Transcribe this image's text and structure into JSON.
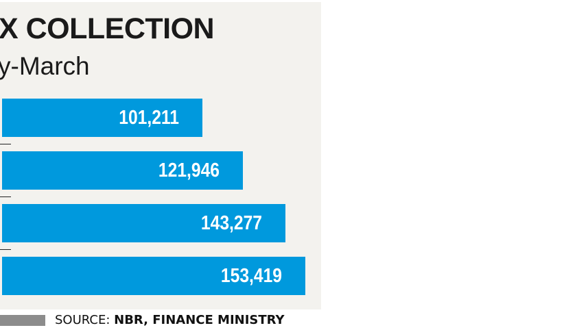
{
  "chart_data": {
    "type": "bar",
    "orientation": "horizontal",
    "title": "X COLLECTION",
    "subtitle": "y-March",
    "values": [
      101211,
      121946,
      143277,
      153419
    ],
    "value_labels": [
      "101,211",
      "121,946",
      "143,277",
      "153,419"
    ],
    "bar_color": "#0099dd",
    "source_label": "SOURCE:",
    "source": "NBR, FINANCE MINISTRY"
  }
}
